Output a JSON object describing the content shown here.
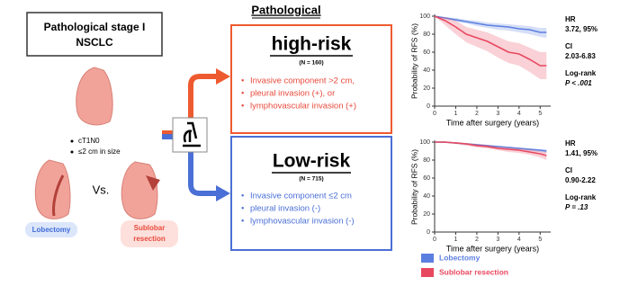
{
  "left": {
    "title": [
      "Pathological stage I",
      "NSCLC"
    ],
    "criteria": [
      "cT1N0",
      "≤2 cm in size"
    ],
    "vs": "Vs.",
    "lobectomy": "Lobectomy",
    "sublobar": [
      "Sublobar",
      "resection"
    ]
  },
  "middle": {
    "header": "Pathological",
    "high": {
      "title": "high-risk",
      "n": "(N = 160)",
      "bullets": [
        "Invasive component >2 cm,",
        "pleural invasion (+), or",
        "lymphovascular invasion (+)"
      ]
    },
    "low": {
      "title": "Low-risk",
      "n": "(N = 715)",
      "bullets": [
        "Invasive component ≤2 cm",
        "pleural invasion (-)",
        "lymphovascular invasion (-)"
      ]
    }
  },
  "chart_data": [
    {
      "type": "line",
      "x_label": "Time after surgery (years)",
      "y_label": "Probability of RFS (%)",
      "xlim": [
        0,
        5.5
      ],
      "ylim": [
        0,
        100
      ],
      "xticks": [
        0,
        1,
        2,
        3,
        4,
        5
      ],
      "yticks": [
        0,
        20,
        40,
        60,
        80,
        100
      ],
      "x": [
        0,
        0.5,
        1,
        1.5,
        2,
        2.5,
        3,
        3.5,
        4,
        4.5,
        5,
        5.3
      ],
      "series": [
        {
          "color": "#5b7fe0",
          "values": [
            100,
            98,
            96,
            94,
            92,
            90,
            89,
            88,
            86,
            85,
            82,
            82
          ],
          "ci_lower": [
            100,
            97,
            94,
            92,
            89,
            87,
            85,
            84,
            82,
            80,
            77,
            76
          ],
          "ci_upper": [
            100,
            99,
            98,
            96,
            95,
            93,
            92,
            91,
            90,
            89,
            87,
            87
          ]
        },
        {
          "color": "#e8485f",
          "values": [
            100,
            95,
            88,
            80,
            76,
            72,
            66,
            60,
            58,
            52,
            45,
            45
          ],
          "ci_lower": [
            100,
            90,
            80,
            71,
            66,
            61,
            54,
            48,
            45,
            38,
            30,
            30
          ],
          "ci_upper": [
            100,
            99,
            95,
            88,
            85,
            82,
            77,
            72,
            70,
            65,
            60,
            60
          ]
        }
      ],
      "annotations": [
        "HR",
        "3.72, 95%",
        "CI",
        "2.03-6.83",
        "Log-rank",
        "P < .001"
      ]
    },
    {
      "type": "line",
      "x_label": "Time after surgery (years)",
      "y_label": "Probability of RFS (%)",
      "xlim": [
        0,
        5.5
      ],
      "ylim": [
        0,
        100
      ],
      "xticks": [
        0,
        1,
        2,
        3,
        4,
        5
      ],
      "yticks": [
        0,
        20,
        40,
        60,
        80,
        100
      ],
      "x": [
        0,
        0.5,
        1,
        1.5,
        2,
        2.5,
        3,
        3.5,
        4,
        4.5,
        5,
        5.3
      ],
      "series": [
        {
          "name": "Lobectomy",
          "color": "#5b7fe0",
          "values": [
            100,
            100,
            99,
            98,
            97,
            96,
            95,
            94,
            93,
            92,
            91,
            90
          ],
          "ci_lower": [
            100,
            99,
            98,
            97,
            96,
            95,
            94,
            93,
            92,
            90,
            89,
            88
          ],
          "ci_upper": [
            100,
            100,
            100,
            99,
            98,
            97,
            96,
            95,
            94,
            93,
            92,
            92
          ]
        },
        {
          "name": "Sublobar resection",
          "color": "#e8485f",
          "values": [
            100,
            100,
            99,
            98,
            96,
            95,
            93,
            92,
            91,
            89,
            87,
            85
          ],
          "ci_lower": [
            100,
            99,
            98,
            96,
            94,
            93,
            91,
            89,
            88,
            86,
            83,
            80
          ],
          "ci_upper": [
            100,
            100,
            100,
            99,
            98,
            97,
            95,
            94,
            93,
            92,
            90,
            89
          ]
        }
      ],
      "annotations": [
        "HR",
        "1.41, 95%",
        "CI",
        "0.90-2.22",
        "Log-rank",
        "P = .13"
      ]
    }
  ]
}
